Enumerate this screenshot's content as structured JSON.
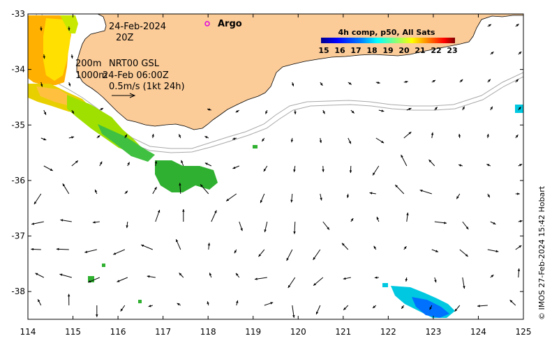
{
  "map": {
    "lon_range": [
      114,
      125
    ],
    "lat_range": [
      -38.5,
      -33
    ],
    "x_ticks": [
      "114",
      "115",
      "116",
      "117",
      "118",
      "119",
      "120",
      "121",
      "122",
      "123",
      "124",
      "125"
    ],
    "y_ticks": [
      "-33",
      "-34",
      "-35",
      "-36",
      "-37",
      "-38"
    ],
    "land_color": "#fbcb98",
    "arrow_color": "#000000"
  },
  "annotations": {
    "date": "24-Feb-2024",
    "time": "20Z",
    "depth_200": "200m",
    "product": "NRT00 GSL",
    "depth_1000": "1000m",
    "ref_time": "24-Feb 06:00Z",
    "scale": "0.5m/s (1kt 24h)",
    "argo_label": "Argo",
    "argo_color": "#e000e0"
  },
  "colorbar": {
    "title": "4h comp, p50, All Sats",
    "ticks": [
      "15",
      "16",
      "17",
      "18",
      "19",
      "20",
      "21",
      "22",
      "23"
    ],
    "colors": [
      "#00008f",
      "#0000ff",
      "#0080ff",
      "#00ffff",
      "#80ff80",
      "#ffff00",
      "#ff8000",
      "#ff0000",
      "#800000"
    ]
  },
  "credit": "© IMOS 27-Feb-2024 15:42 Hobart"
}
